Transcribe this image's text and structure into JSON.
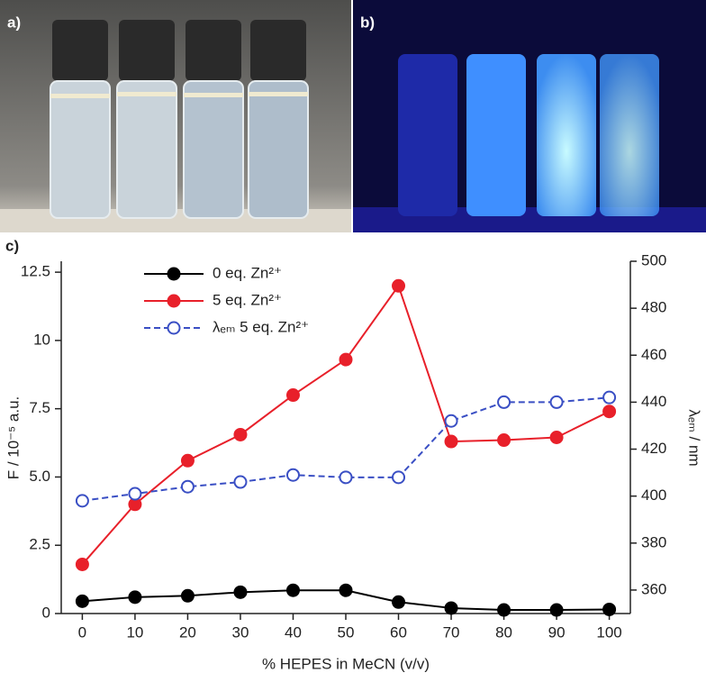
{
  "panels": {
    "a": "a)",
    "b": "b)",
    "c": "c)"
  },
  "chart_data": {
    "type": "line",
    "x_label": "% HEPES in MeCN (v/v)",
    "y_label": "F / 10⁻⁵ a.u.",
    "y2_label": "λₑₘ / nm",
    "x": [
      0,
      10,
      20,
      30,
      40,
      50,
      60,
      70,
      80,
      90,
      100
    ],
    "xlim": [
      -4,
      104
    ],
    "xticks": [
      0,
      10,
      20,
      30,
      40,
      50,
      60,
      70,
      80,
      90,
      100
    ],
    "ylim": [
      0,
      12.9
    ],
    "yticks": [
      0,
      2.5,
      {
        "value": 5,
        "label": "5.0"
      },
      7.5,
      10,
      12.5
    ],
    "y2lim": [
      350,
      500
    ],
    "y2ticks": [
      360,
      380,
      400,
      420,
      440,
      460,
      480,
      500
    ],
    "legend": "upper left",
    "series": [
      {
        "name": "0 eq. Zn²⁺",
        "color": "#000000",
        "marker": "filled",
        "dashed": false,
        "values": [
          0.45,
          0.6,
          0.65,
          0.78,
          0.85,
          0.85,
          0.42,
          0.2,
          0.13,
          0.13,
          0.15
        ]
      },
      {
        "name": "5 eq. Zn²⁺",
        "color": "#e8202a",
        "marker": "filled",
        "dashed": false,
        "values": [
          1.8,
          4.0,
          5.6,
          6.55,
          8.0,
          9.3,
          12.0,
          6.3,
          6.35,
          6.45,
          7.4
        ]
      },
      {
        "name": "λₑₘ 5 eq. Zn²⁺",
        "color": "#3a4fc4",
        "marker": "open",
        "dashed": true,
        "axis": "y2",
        "values": [
          398,
          401,
          404,
          406,
          409,
          408,
          408,
          432,
          440,
          440,
          442
        ]
      }
    ]
  }
}
